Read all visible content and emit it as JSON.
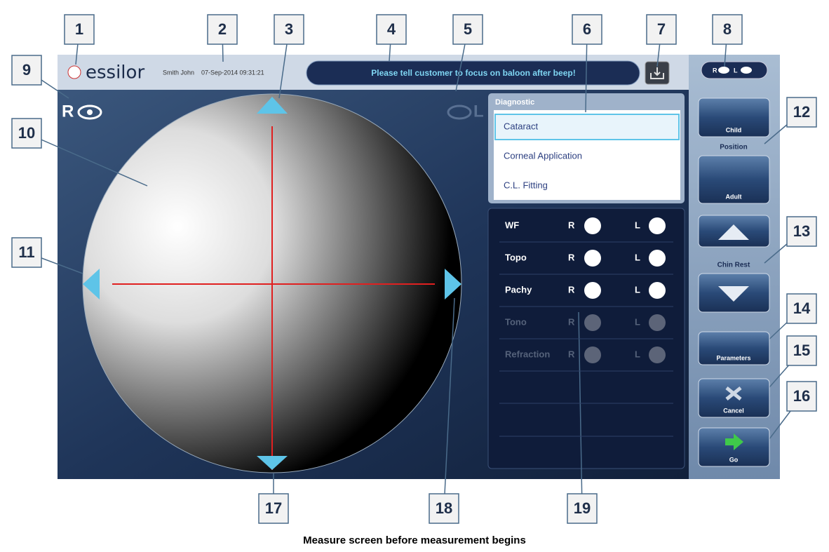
{
  "callouts": [
    "1",
    "2",
    "3",
    "4",
    "5",
    "6",
    "7",
    "8",
    "9",
    "10",
    "11",
    "12",
    "13",
    "14",
    "15",
    "16",
    "17",
    "18",
    "19"
  ],
  "header": {
    "brand": "essilor",
    "patient": "Smith John",
    "datetime": "07-Sep-2014 09:31:21",
    "message": "Please tell customer to focus on baloon after beep!"
  },
  "eyes": {
    "right": "R",
    "left": "L"
  },
  "eye_selector": {
    "right": "R",
    "left": "L"
  },
  "diagnostic": {
    "title": "Diagnostic",
    "items": [
      "Cataract",
      "Corneal Application",
      "C.L. Fitting"
    ]
  },
  "measurements": [
    {
      "name": "WF",
      "right": "R",
      "left": "L",
      "enabled": true
    },
    {
      "name": "Topo",
      "right": "R",
      "left": "L",
      "enabled": true
    },
    {
      "name": "Pachy",
      "right": "R",
      "left": "L",
      "enabled": true
    },
    {
      "name": "Tono",
      "right": "R",
      "left": "L",
      "enabled": false
    },
    {
      "name": "Refraction",
      "right": "R",
      "left": "L",
      "enabled": false
    }
  ],
  "position": {
    "child": "Child",
    "label": "Position",
    "adult": "Adult"
  },
  "chin_rest": "Chin Rest",
  "buttons": {
    "parameters": "Parameters",
    "cancel": "Cancel",
    "go": "Go"
  },
  "caption": "Measure screen before measurement begins"
}
